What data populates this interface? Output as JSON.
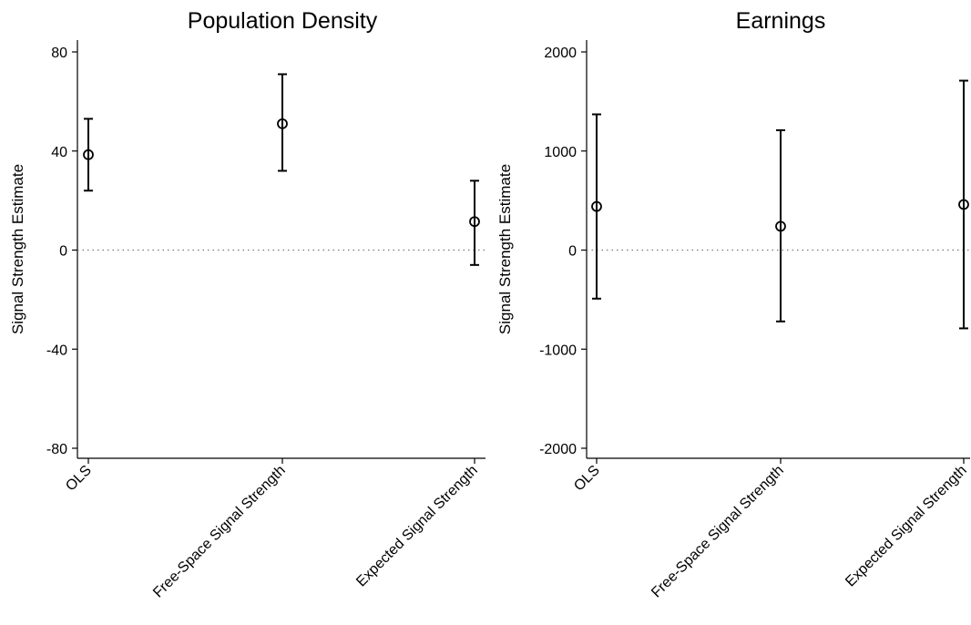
{
  "chart_data": [
    {
      "type": "scatter",
      "title": "Population Density",
      "ylabel": "Signal Strength Estimate",
      "xlabel": "",
      "categories": [
        "OLS",
        "Free-Space Signal Strength",
        "Expected Signal Strength"
      ],
      "estimates": [
        38.5,
        51,
        11.5
      ],
      "ci_low": [
        24,
        32,
        -6
      ],
      "ci_high": [
        53,
        71,
        28
      ],
      "yticks": [
        "80",
        "40",
        "0",
        "-40",
        "-80"
      ],
      "ytick_values": [
        80,
        40,
        0,
        -40,
        -80
      ],
      "ylim": [
        -85,
        85
      ],
      "reference_line": 0,
      "grid": false
    },
    {
      "type": "scatter",
      "title": "Earnings",
      "ylabel": "Signal Strength Estimate",
      "xlabel": "",
      "categories": [
        "OLS",
        "Free-Space Signal Strength",
        "Expected Signal Strength"
      ],
      "estimates": [
        440,
        240,
        460
      ],
      "ci_low": [
        -490,
        -720,
        -790
      ],
      "ci_high": [
        1370,
        1210,
        1710
      ],
      "yticks": [
        "2000",
        "1000",
        "0",
        "-1000",
        "-2000"
      ],
      "ytick_values": [
        2000,
        1000,
        0,
        -1000,
        -2000
      ],
      "ylim": [
        -2100,
        2100
      ],
      "reference_line": 0,
      "grid": false
    }
  ]
}
